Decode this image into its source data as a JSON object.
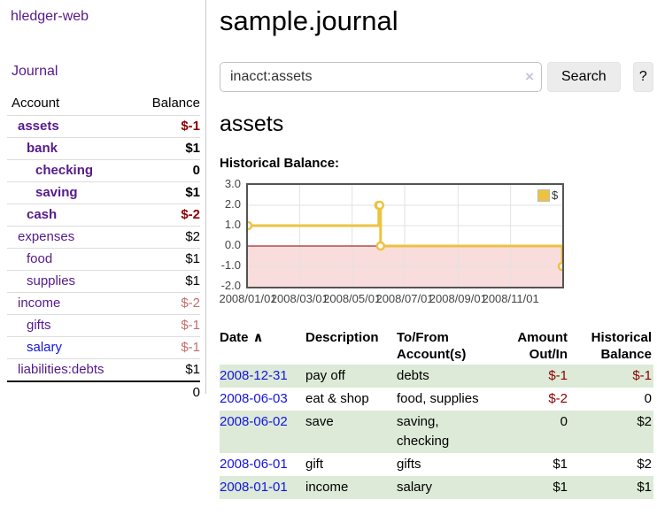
{
  "app": {
    "brand": "hledger-web",
    "nav_journal": "Journal"
  },
  "sidebar": {
    "header": {
      "account": "Account",
      "balance": "Balance"
    },
    "accounts": [
      {
        "name": "assets",
        "balance": "$-1",
        "indent": 1,
        "bold": true,
        "balance_style": "negative"
      },
      {
        "name": "bank",
        "balance": "$1",
        "indent": 2,
        "bold": true,
        "balance_style": "normal"
      },
      {
        "name": "checking",
        "balance": "0",
        "indent": 3,
        "bold": true,
        "balance_style": "normal"
      },
      {
        "name": "saving",
        "balance": "$1",
        "indent": 3,
        "bold": true,
        "balance_style": "normal"
      },
      {
        "name": "cash",
        "balance": "$-2",
        "indent": 2,
        "bold": true,
        "balance_style": "negative"
      },
      {
        "name": "expenses",
        "balance": "$2",
        "indent": 1,
        "bold": false,
        "balance_style": "normal"
      },
      {
        "name": "food",
        "balance": "$1",
        "indent": 2,
        "bold": false,
        "balance_style": "normal"
      },
      {
        "name": "supplies",
        "balance": "$1",
        "indent": 2,
        "bold": false,
        "balance_style": "normal"
      },
      {
        "name": "income",
        "balance": "$-2",
        "indent": 1,
        "bold": false,
        "balance_style": "negative-light"
      },
      {
        "name": "gifts",
        "balance": "$-1",
        "indent": 2,
        "bold": false,
        "balance_style": "negative-light"
      },
      {
        "name": "salary",
        "balance": "$-1",
        "indent": 2,
        "bold": false,
        "balance_style": "negative-light",
        "link_blue": true
      },
      {
        "name": "liabilities:debts",
        "balance": "$1",
        "indent": 1,
        "bold": false,
        "balance_style": "normal"
      }
    ],
    "total": "0"
  },
  "header": {
    "title": "sample.journal"
  },
  "search": {
    "value": "inacct:assets",
    "clear_icon": "×",
    "button_label": "Search",
    "help_label": "?"
  },
  "account_page": {
    "heading": "assets",
    "chart_label": "Historical Balance:"
  },
  "chart_data": {
    "type": "line",
    "title": "Historical Balance",
    "step": true,
    "series": [
      {
        "name": "$",
        "color": "#edc240",
        "points": [
          [
            "2008-01-01",
            1
          ],
          [
            "2008-06-01",
            2
          ],
          [
            "2008-06-02",
            2
          ],
          [
            "2008-06-03",
            0
          ],
          [
            "2008-12-31",
            -1
          ]
        ]
      }
    ],
    "x_range": [
      "2008-01-01",
      "2008-12-31"
    ],
    "x_ticks": [
      "2008/01/01",
      "2008/03/01",
      "2008/05/01",
      "2008/07/01",
      "2008/09/01",
      "2008/11/01"
    ],
    "y_ticks": [
      3.0,
      2.0,
      1.0,
      0.0,
      -1.0,
      -2.0
    ],
    "ylim": [
      -2,
      3
    ],
    "grid": true,
    "grid_color": "#e2e2e2",
    "border_color": "#545454",
    "negative_fill": "#f9dcdc",
    "zero_line_color": "#8b0000",
    "legend": {
      "label": "$",
      "position": "top-right"
    }
  },
  "register": {
    "headers": {
      "date": "Date",
      "sort_indicator": "∧",
      "description": "Description",
      "accounts": "To/From Account(s)",
      "amount": "Amount Out/In",
      "balance": "Historical Balance"
    },
    "rows": [
      {
        "date": "2008-12-31",
        "description": "pay off",
        "accounts": "debts",
        "amount": "$-1",
        "amount_negative": true,
        "balance": "$-1",
        "balance_negative": true,
        "shaded": true
      },
      {
        "date": "2008-06-03",
        "description": "eat & shop",
        "accounts": "food, supplies",
        "amount": "$-2",
        "amount_negative": true,
        "balance": "0",
        "balance_negative": false,
        "shaded": false
      },
      {
        "date": "2008-06-02",
        "description": "save",
        "accounts": "saving, checking",
        "amount": "0",
        "amount_negative": false,
        "balance": "$2",
        "balance_negative": false,
        "shaded": true
      },
      {
        "date": "2008-06-01",
        "description": "gift",
        "accounts": "gifts",
        "amount": "$1",
        "amount_negative": false,
        "balance": "$2",
        "balance_negative": false,
        "shaded": false
      },
      {
        "date": "2008-01-01",
        "description": "income",
        "accounts": "salary",
        "amount": "$1",
        "amount_negative": false,
        "balance": "$1",
        "balance_negative": false,
        "shaded": true
      }
    ]
  },
  "colors": {
    "link_visited_purple": "#551a8b",
    "link_blue": "#1414e0",
    "negative_strong": "#8b0000",
    "negative_light": "#c26d6d",
    "row_shade_green": "#dcead7",
    "series_gold": "#edc240",
    "chart_negative_area": "#f9dcdc"
  }
}
